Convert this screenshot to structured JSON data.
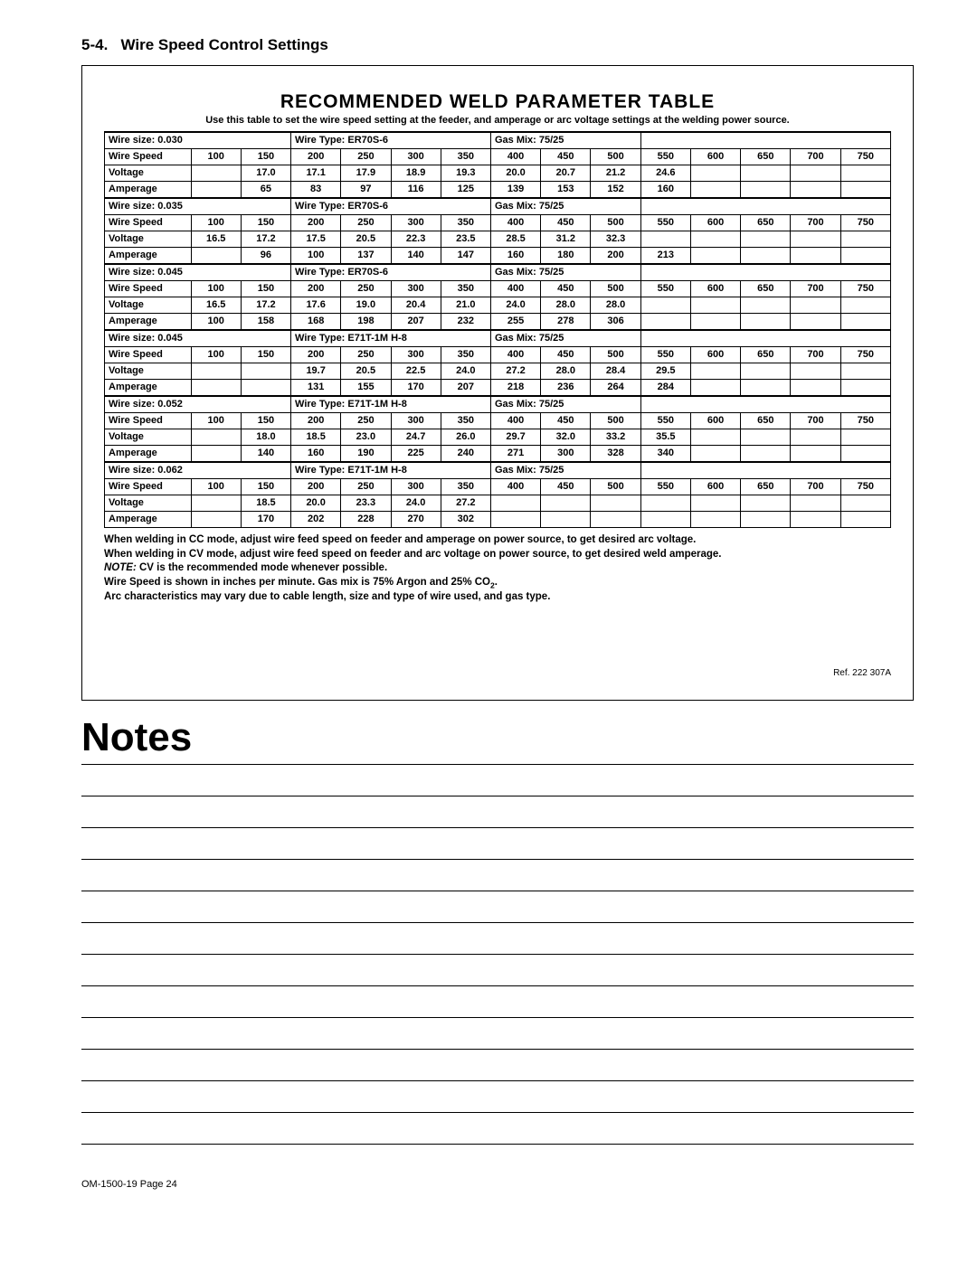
{
  "section": {
    "number": "5-4.",
    "title": "Wire Speed Control Settings"
  },
  "tableTitle": "RECOMMENDED WELD PARAMETER TABLE",
  "tableSubtitle": "Use this table to set the wire speed setting at the feeder, and amperage or arc voltage settings at the welding power source.",
  "colWidths": {
    "label": 11,
    "data": 6.36
  },
  "speedHeader": [
    "100",
    "150",
    "200",
    "250",
    "300",
    "350",
    "400",
    "450",
    "500",
    "550",
    "600",
    "650",
    "700",
    "750"
  ],
  "groups": [
    {
      "wireSize": "Wire size: 0.030",
      "wireType": "Wire Type: ER70S-6",
      "gasMix": "Gas Mix: 75/25",
      "voltage": [
        "",
        "17.0",
        "17.1",
        "17.9",
        "18.9",
        "19.3",
        "20.0",
        "20.7",
        "21.2",
        "24.6",
        "",
        "",
        "",
        ""
      ],
      "amperage": [
        "",
        "65",
        "83",
        "97",
        "116",
        "125",
        "139",
        "153",
        "152",
        "160",
        "",
        "",
        "",
        ""
      ]
    },
    {
      "wireSize": "Wire size: 0.035",
      "wireType": "Wire Type: ER70S-6",
      "gasMix": "Gas Mix: 75/25",
      "voltage": [
        "16.5",
        "17.2",
        "17.5",
        "20.5",
        "22.3",
        "23.5",
        "28.5",
        "31.2",
        "32.3",
        "",
        "",
        "",
        "",
        ""
      ],
      "amperage": [
        "",
        "96",
        "100",
        "137",
        "140",
        "147",
        "160",
        "180",
        "200",
        "213",
        "",
        "",
        "",
        ""
      ]
    },
    {
      "wireSize": "Wire size: 0.045",
      "wireType": "Wire Type: ER70S-6",
      "gasMix": "Gas Mix: 75/25",
      "voltage": [
        "16.5",
        "17.2",
        "17.6",
        "19.0",
        "20.4",
        "21.0",
        "24.0",
        "28.0",
        "28.0",
        "",
        "",
        "",
        "",
        ""
      ],
      "amperage": [
        "100",
        "158",
        "168",
        "198",
        "207",
        "232",
        "255",
        "278",
        "306",
        "",
        "",
        "",
        "",
        ""
      ]
    },
    {
      "wireSize": "Wire size: 0.045",
      "wireType": "Wire Type: E71T-1M H-8",
      "gasMix": "Gas Mix: 75/25",
      "voltage": [
        "",
        "",
        "19.7",
        "20.5",
        "22.5",
        "24.0",
        "27.2",
        "28.0",
        "28.4",
        "29.5",
        "",
        "",
        "",
        ""
      ],
      "amperage": [
        "",
        "",
        "131",
        "155",
        "170",
        "207",
        "218",
        "236",
        "264",
        "284",
        "",
        "",
        "",
        ""
      ]
    },
    {
      "wireSize": "Wire size: 0.052",
      "wireType": "Wire Type: E71T-1M H-8",
      "gasMix": "Gas Mix: 75/25",
      "voltage": [
        "",
        "18.0",
        "18.5",
        "23.0",
        "24.7",
        "26.0",
        "29.7",
        "32.0",
        "33.2",
        "35.5",
        "",
        "",
        "",
        ""
      ],
      "amperage": [
        "",
        "140",
        "160",
        "190",
        "225",
        "240",
        "271",
        "300",
        "328",
        "340",
        "",
        "",
        "",
        ""
      ]
    },
    {
      "wireSize": "Wire size: 0.062",
      "wireType": "Wire Type: E71T-1M H-8",
      "gasMix": "Gas Mix: 75/25",
      "voltage": [
        "",
        "18.5",
        "20.0",
        "23.3",
        "24.0",
        "27.2",
        "",
        "",
        "",
        "",
        "",
        "",
        "",
        ""
      ],
      "amperage": [
        "",
        "170",
        "202",
        "228",
        "270",
        "302",
        "",
        "",
        "",
        "",
        "",
        "",
        "",
        ""
      ]
    }
  ],
  "rowLabels": {
    "wireSpeed": "Wire Speed",
    "voltage": "Voltage",
    "amperage": "Amperage"
  },
  "footnotes": {
    "line1": "When welding in CC mode, adjust wire feed speed on feeder and amperage on power source, to get desired arc voltage.",
    "line2": "When welding in CV mode, adjust wire feed speed on feeder and arc voltage on power source, to get desired weld amperage.",
    "noteLabel": "NOTE:",
    "noteText": "CV is the recommended mode whenever possible.",
    "line4a": "Wire Speed is shown in inches per minute. Gas mix is 75% Argon and 25% CO",
    "line4sub": "2",
    "line4b": ".",
    "line5": "Arc characteristics may vary due to cable length, size and type of wire used, and gas type."
  },
  "ref": "Ref. 222 307A",
  "notesHeading": "Notes",
  "noteLines": 13,
  "footer": "OM-1500-19 Page 24"
}
